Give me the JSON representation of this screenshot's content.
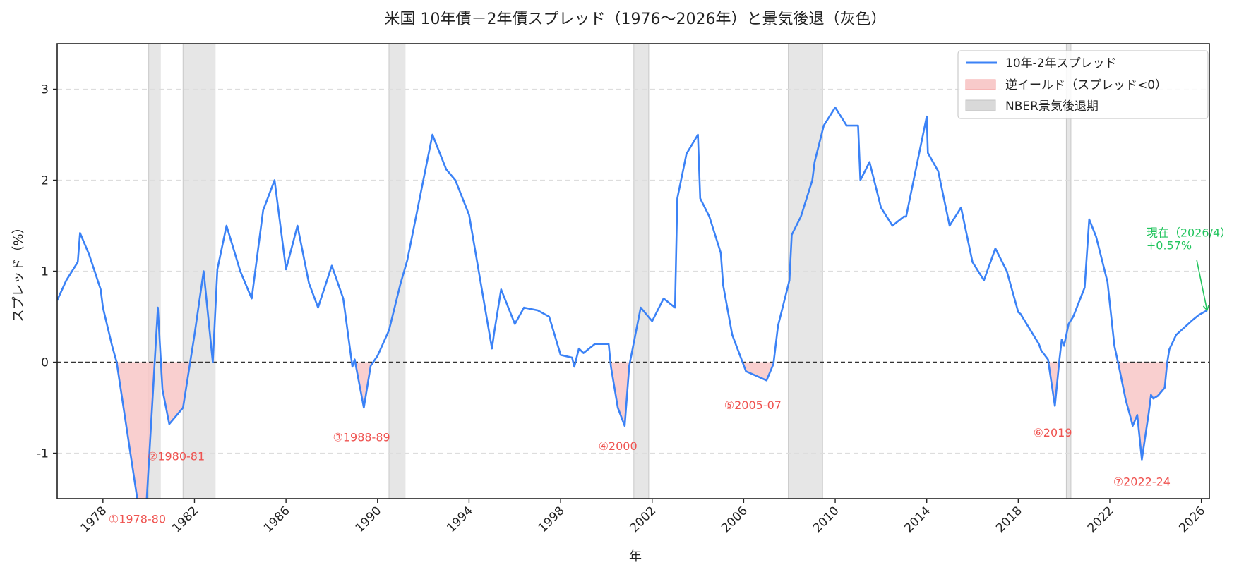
{
  "chart_data": {
    "type": "line",
    "title": "米国 10年債－2年債スプレッド（1976〜2026年）と景気後退（灰色）",
    "xlabel": "年",
    "ylabel": "スプレッド（%）",
    "xlim": [
      1976,
      2026.35
    ],
    "ylim": [
      -1.5,
      3.5
    ],
    "xticks": [
      1978,
      1982,
      1986,
      1990,
      1994,
      1998,
      2002,
      2006,
      2010,
      2014,
      2018,
      2022,
      2026
    ],
    "yticks": [
      -1,
      0,
      1,
      2,
      3
    ],
    "grid": "y dashed",
    "legend": {
      "placement": "top-right",
      "entries": [
        "10年-2年スプレッド",
        "逆イールド（スプレッド<0）",
        "NBER景気後退期"
      ]
    },
    "colors": {
      "line": "#3b82f6",
      "inversion": "#f8caca",
      "recession": "#d9d9d9",
      "annotation": "#ef5350",
      "current": "#22c55e"
    },
    "series": [
      {
        "name": "10年-2年スプレッド",
        "x": [
          1976.0,
          1976.4,
          1976.9,
          1977.0,
          1977.4,
          1977.9,
          1978.0,
          1978.4,
          1978.6,
          1979.8,
          1980.4,
          1980.6,
          1980.9,
          1981.5,
          1982.0,
          1982.4,
          1982.8,
          1983.0,
          1983.4,
          1984.0,
          1984.5,
          1985.0,
          1985.5,
          1986.0,
          1986.5,
          1987.0,
          1987.4,
          1988.0,
          1988.5,
          1988.9,
          1989.0,
          1989.4,
          1989.7,
          1990.0,
          1990.5,
          1991.0,
          1991.3,
          1992.0,
          1992.4,
          1993.0,
          1993.4,
          1994.0,
          1995.0,
          1995.1,
          1995.4,
          1996.0,
          1996.4,
          1997.0,
          1997.5,
          1998.0,
          1998.5,
          1998.6,
          1998.8,
          1999.0,
          1999.5,
          2000.1,
          2000.2,
          2000.5,
          2000.8,
          2001.0,
          2001.5,
          2001.9,
          2002.0,
          2002.5,
          2003.0,
          2003.1,
          2003.5,
          2004.0,
          2004.1,
          2004.5,
          2005.0,
          2005.1,
          2005.5,
          2006.1,
          2007.0,
          2007.3,
          2007.5,
          2008.0,
          2008.1,
          2008.5,
          2009.0,
          2009.1,
          2009.5,
          2010.0,
          2010.5,
          2011.0,
          2011.1,
          2011.5,
          2012.0,
          2012.5,
          2013.0,
          2013.1,
          2014.0,
          2014.05,
          2014.5,
          2015.0,
          2015.5,
          2016.0,
          2016.5,
          2017.0,
          2017.5,
          2018.0,
          2018.1,
          2018.9,
          2019.0,
          2019.3,
          2019.6,
          2019.8,
          2019.9,
          2020.0,
          2020.2,
          2020.4,
          2020.9,
          2021.1,
          2021.4,
          2021.9,
          2022.2,
          2022.4,
          2022.7,
          2022.9,
          2023.0,
          2023.2,
          2023.4,
          2023.7,
          2023.8,
          2023.9,
          2024.1,
          2024.4,
          2024.5,
          2024.6,
          2024.9,
          2025.6,
          2025.9,
          2026.25
        ],
        "y": [
          0.68,
          0.9,
          1.1,
          1.42,
          1.18,
          0.8,
          0.6,
          0.18,
          0.0,
          -2.0,
          0.6,
          -0.3,
          -0.68,
          -0.5,
          0.3,
          1.0,
          0.0,
          1.02,
          1.5,
          1.0,
          0.7,
          1.67,
          2.0,
          1.02,
          1.5,
          0.87,
          0.6,
          1.06,
          0.7,
          -0.05,
          0.03,
          -0.5,
          -0.04,
          0.07,
          0.35,
          0.86,
          1.12,
          2.0,
          2.5,
          2.12,
          2.0,
          1.62,
          0.15,
          0.33,
          0.8,
          0.42,
          0.6,
          0.57,
          0.5,
          0.08,
          0.05,
          -0.05,
          0.15,
          0.1,
          0.2,
          0.2,
          -0.05,
          -0.5,
          -0.7,
          -0.04,
          0.6,
          0.48,
          0.45,
          0.7,
          0.6,
          1.8,
          2.29,
          2.5,
          1.8,
          1.6,
          1.2,
          0.85,
          0.3,
          -0.1,
          -0.2,
          -0.02,
          0.4,
          0.9,
          1.4,
          1.6,
          2.0,
          2.2,
          2.6,
          2.8,
          2.6,
          2.6,
          2.0,
          2.2,
          1.7,
          1.5,
          1.6,
          1.6,
          2.7,
          2.3,
          2.1,
          1.5,
          1.7,
          1.1,
          0.9,
          1.25,
          1.0,
          0.55,
          0.53,
          0.2,
          0.13,
          0.03,
          -0.48,
          0.03,
          0.25,
          0.18,
          0.42,
          0.5,
          0.82,
          1.57,
          1.38,
          0.88,
          0.18,
          -0.05,
          -0.42,
          -0.6,
          -0.7,
          -0.58,
          -1.07,
          -0.56,
          -0.36,
          -0.4,
          -0.37,
          -0.28,
          -0.02,
          0.14,
          0.3,
          0.46,
          0.52,
          0.57
        ]
      }
    ],
    "recessions": [
      [
        1980.0,
        1980.5
      ],
      [
        1981.5,
        1982.9
      ],
      [
        1990.5,
        1991.2
      ],
      [
        2001.2,
        2001.85
      ],
      [
        2007.95,
        2009.45
      ],
      [
        2020.1,
        2020.3
      ]
    ],
    "inversion_annotations": [
      {
        "text": "①1978-80",
        "x": 1979.5,
        "y": -1.72
      },
      {
        "text": "②1980-81",
        "x": 1981.2,
        "y": -1.03
      },
      {
        "text": "③1988-89",
        "x": 1989.3,
        "y": -0.82
      },
      {
        "text": "④2000",
        "x": 2000.5,
        "y": -0.92
      },
      {
        "text": "⑤2005-07",
        "x": 2006.4,
        "y": -0.47
      },
      {
        "text": "⑥2019",
        "x": 2019.5,
        "y": -0.77
      },
      {
        "text": "⑦2022-24",
        "x": 2023.4,
        "y": -1.31
      }
    ],
    "current_annotation": {
      "line1": "現在（2026/4）",
      "line2": "+0.57%",
      "text_x": 2023.6,
      "text_y": 1.38,
      "arrow_from": [
        2025.8,
        1.12
      ],
      "arrow_to": [
        2026.25,
        0.57
      ]
    }
  }
}
